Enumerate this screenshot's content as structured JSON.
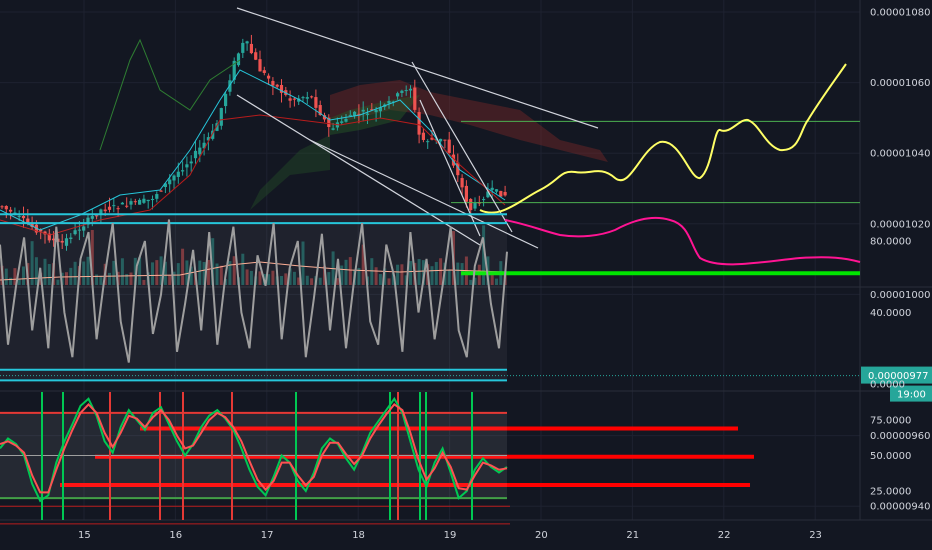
{
  "chart_data": [
    {
      "type": "candlestick",
      "panel": "price",
      "x_ticks": [
        "15",
        "16",
        "17",
        "18",
        "19",
        "20",
        "21",
        "22",
        "23"
      ],
      "y_ticks": [
        "0.00001080",
        "0.00001060",
        "0.00001040",
        "0.00001020",
        "0.00001000",
        "0.00000960",
        "0.00000940"
      ],
      "ylim": [
        9.32e-06,
        1.084e-05
      ],
      "current_price": "0.00000977",
      "countdown": "19:00",
      "horizontal_levels": [
        {
          "price": 1.049e-05,
          "color": "#4caf50"
        },
        {
          "price": 1.026e-05,
          "color": "#4caf50"
        },
        {
          "price": 1.006e-05,
          "color": "#00e600"
        },
        {
          "price": 9.62e-06,
          "color": "#ff0000"
        },
        {
          "price": 9.54e-06,
          "color": "#ff0000"
        },
        {
          "price": 9.46e-06,
          "color": "#ff0000"
        }
      ],
      "colors": {
        "up": "#26a69a",
        "down": "#ef5350",
        "projection_up": "#ffff66",
        "projection_down": "#ff1493"
      }
    },
    {
      "type": "line",
      "panel": "oscillator-1",
      "y_ticks": [
        "80.0000",
        "40.0000",
        "0.0000"
      ],
      "ylim": [
        0,
        100
      ],
      "levels": [
        95,
        90,
        8,
        2
      ],
      "series": [
        {
          "values": [
            78,
            22,
            55,
            82,
            30,
            65,
            20,
            88,
            40,
            15,
            70,
            85,
            25,
            60,
            90,
            35,
            12,
            66,
            80,
            28,
            50,
            92,
            18,
            45,
            75,
            30,
            85,
            22,
            60,
            88,
            40,
            20,
            72,
            55,
            90,
            25,
            65,
            80,
            15,
            48,
            84,
            30,
            70,
            20,
            58,
            90,
            35,
            22,
            78,
            60,
            18,
            85,
            40,
            70,
            25,
            55,
            88,
            30,
            15,
            66,
            82,
            45,
            20,
            74
          ]
        }
      ]
    },
    {
      "type": "line",
      "panel": "oscillator-2",
      "y_ticks": [
        "75.0000",
        "50.0000",
        "25.0000"
      ],
      "ylim": [
        8,
        100
      ],
      "levels": [
        80,
        20
      ],
      "series": [
        {
          "color": "#00c853",
          "values": [
            55,
            62,
            58,
            50,
            30,
            18,
            22,
            45,
            60,
            72,
            85,
            90,
            78,
            60,
            52,
            70,
            82,
            75,
            68,
            80,
            84,
            72,
            60,
            50,
            58,
            70,
            78,
            82,
            76,
            68,
            55,
            40,
            28,
            22,
            35,
            50,
            45,
            32,
            25,
            38,
            55,
            62,
            58,
            48,
            40,
            52,
            66,
            74,
            82,
            90,
            80,
            60,
            40,
            28,
            45,
            55,
            38,
            20,
            25,
            40,
            48,
            42,
            38,
            42
          ]
        },
        {
          "color": "#ff5252",
          "values": [
            58,
            60,
            57,
            52,
            36,
            24,
            24,
            40,
            55,
            68,
            80,
            86,
            80,
            66,
            56,
            66,
            78,
            76,
            70,
            77,
            82,
            75,
            64,
            55,
            57,
            66,
            75,
            80,
            77,
            70,
            60,
            46,
            33,
            26,
            32,
            45,
            45,
            36,
            29,
            35,
            50,
            59,
            59,
            51,
            44,
            50,
            62,
            71,
            79,
            86,
            82,
            66,
            47,
            33,
            41,
            52,
            42,
            27,
            26,
            36,
            45,
            43,
            40,
            41
          ]
        }
      ]
    }
  ]
}
